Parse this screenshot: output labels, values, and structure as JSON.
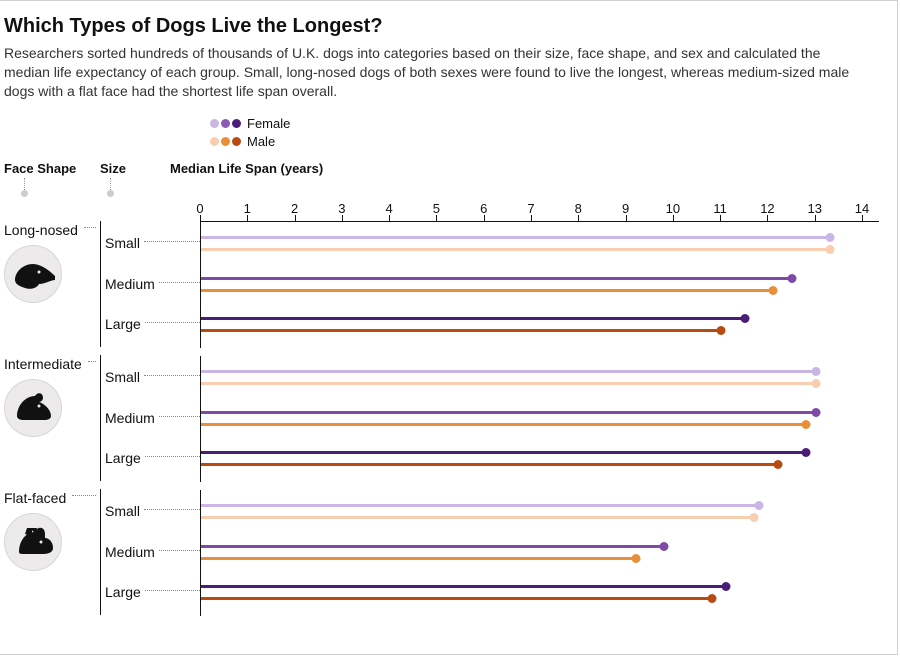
{
  "title": "Which Types of Dogs Live the Longest?",
  "subtitle": "Researchers sorted hundreds of thousands of U.K. dogs into categories based on their size, face shape, and sex and calculated the median life expectancy of each group. Small, long-nosed dogs of both sexes were found to live the longest, whereas medium-sized male dogs with a flat face had the shortest life span overall.",
  "columns": {
    "face_shape": "Face Shape",
    "size": "Size",
    "axis_title": "Median Life Span (years)"
  },
  "legend": {
    "female": {
      "label": "Female",
      "colors": [
        "#c9b6e4",
        "#8a5bb5",
        "#4a1e78"
      ]
    },
    "male": {
      "label": "Male",
      "colors": [
        "#f8cdb0",
        "#e88f3a",
        "#b84a12"
      ]
    }
  },
  "axis": {
    "min": 0,
    "max": 14,
    "tick_step": 1,
    "ticks": [
      0,
      1,
      2,
      3,
      4,
      5,
      6,
      7,
      8,
      9,
      10,
      11,
      12,
      13,
      14
    ]
  },
  "size_labels": [
    "Small",
    "Medium",
    "Large"
  ],
  "chart": {
    "type": "lollipop",
    "background_color": "#ffffff",
    "stick_width": 3,
    "ball_radius": 4.5,
    "female_colors_by_size": {
      "Small": "#c9b6e4",
      "Medium": "#7d4aa8",
      "Large": "#4a1e78"
    },
    "male_colors_by_size": {
      "Small": "#f8cdb0",
      "Medium": "#e88f3a",
      "Large": "#b84a12"
    }
  },
  "groups": [
    {
      "face_shape": "Long-nosed",
      "icon": "long-nosed",
      "rows": [
        {
          "size": "Small",
          "female": 13.3,
          "male": 13.3
        },
        {
          "size": "Medium",
          "female": 12.5,
          "male": 12.1
        },
        {
          "size": "Large",
          "female": 11.5,
          "male": 11.0
        }
      ]
    },
    {
      "face_shape": "Intermediate",
      "icon": "intermediate",
      "rows": [
        {
          "size": "Small",
          "female": 13.0,
          "male": 13.0
        },
        {
          "size": "Medium",
          "female": 13.0,
          "male": 12.8
        },
        {
          "size": "Large",
          "female": 12.8,
          "male": 12.2
        }
      ]
    },
    {
      "face_shape": "Flat-faced",
      "icon": "flat-faced",
      "rows": [
        {
          "size": "Small",
          "female": 11.8,
          "male": 11.7
        },
        {
          "size": "Medium",
          "female": 9.8,
          "male": 9.2
        },
        {
          "size": "Large",
          "female": 11.1,
          "male": 10.8
        }
      ]
    }
  ]
}
